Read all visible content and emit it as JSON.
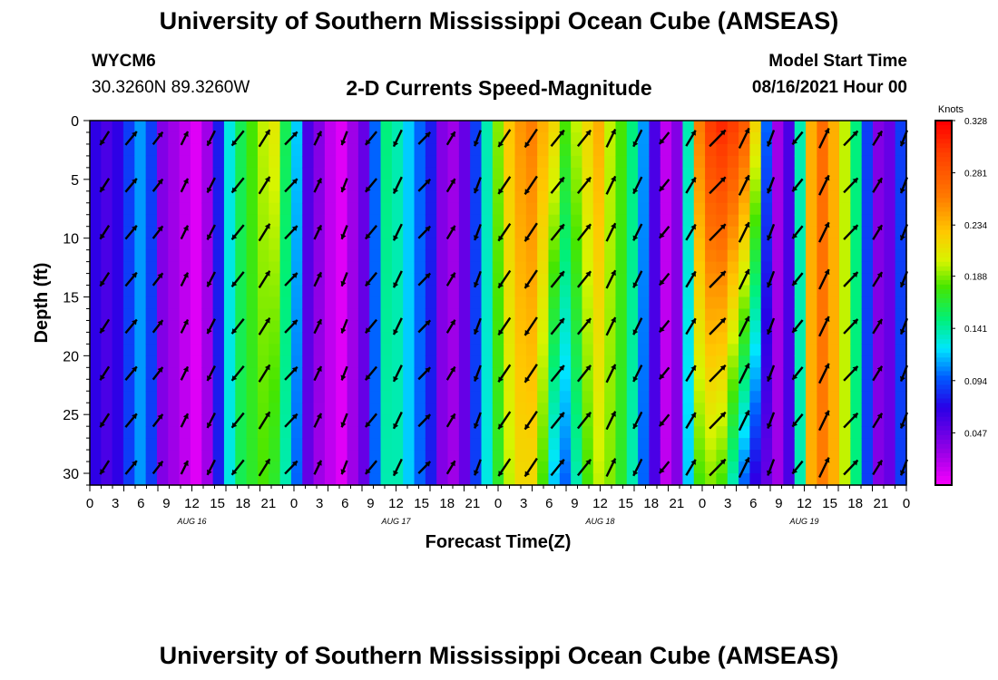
{
  "header": {
    "title": "University of Southern Mississippi Ocean Cube (AMSEAS)",
    "station": "WYCM6",
    "coords": "30.3260N  89.3260W",
    "subtitle": "2-D Currents Speed-Magnitude",
    "model_label": "Model Start Time",
    "model_date": "08/16/2021 Hour 00"
  },
  "footer": {
    "title": "University of Southern Mississippi Ocean Cube (AMSEAS)"
  },
  "chart_data": {
    "type": "heatmap",
    "title": "2-D Currents Speed-Magnitude",
    "xlabel": "Forecast Time(Z)",
    "ylabel": "Depth (ft)",
    "xlim": [
      0,
      72
    ],
    "ylim": [
      31,
      0
    ],
    "x_tick_labels": [
      "0",
      "3",
      "6",
      "9",
      "12",
      "15",
      "18",
      "21",
      "0",
      "3",
      "6",
      "9",
      "12",
      "15",
      "18",
      "21",
      "0",
      "3",
      "6",
      "9",
      "12",
      "15",
      "18",
      "21",
      "0",
      "3",
      "6",
      "9",
      "12",
      "15",
      "18",
      "21",
      "0"
    ],
    "y_ticks": [
      0,
      5,
      10,
      15,
      20,
      25,
      30
    ],
    "day_labels": [
      "AUG 16",
      "AUG 17",
      "AUG 18",
      "AUG 19"
    ],
    "colorbar": {
      "unit": "Knots",
      "min": 0,
      "max": 0.328,
      "tick_labels": [
        "0.328",
        "0.281",
        "0.234",
        "0.188",
        "0.141",
        "0.094",
        "0.047"
      ]
    },
    "speed_profile_surface": [
      0.07,
      0.06,
      0.07,
      0.09,
      0.11,
      0.09,
      0.04,
      0.03,
      0.02,
      0.01,
      0.03,
      0.08,
      0.13,
      0.16,
      0.18,
      0.2,
      0.21,
      0.16,
      0.12,
      0.06,
      0.04,
      0.02,
      0.01,
      0.03,
      0.05,
      0.1,
      0.15,
      0.14,
      0.12,
      0.1,
      0.08,
      0.04,
      0.03,
      0.05,
      0.09,
      0.14,
      0.19,
      0.23,
      0.25,
      0.26,
      0.24,
      0.22,
      0.18,
      0.2,
      0.22,
      0.24,
      0.2,
      0.18,
      0.15,
      0.11,
      0.06,
      0.02,
      0.04,
      0.14,
      0.26,
      0.3,
      0.31,
      0.3,
      0.28,
      0.22,
      0.1,
      0.03,
      0.06,
      0.14,
      0.24,
      0.27,
      0.24,
      0.2,
      0.15,
      0.09,
      0.04,
      0.05,
      0.09
    ],
    "speed_profile_bottom": [
      0.07,
      0.06,
      0.07,
      0.09,
      0.11,
      0.09,
      0.04,
      0.03,
      0.02,
      0.01,
      0.03,
      0.08,
      0.13,
      0.16,
      0.17,
      0.18,
      0.17,
      0.14,
      0.1,
      0.05,
      0.03,
      0.02,
      0.01,
      0.03,
      0.05,
      0.1,
      0.14,
      0.14,
      0.12,
      0.1,
      0.08,
      0.04,
      0.03,
      0.05,
      0.09,
      0.13,
      0.17,
      0.2,
      0.22,
      0.22,
      0.18,
      0.12,
      0.1,
      0.14,
      0.18,
      0.2,
      0.19,
      0.17,
      0.14,
      0.1,
      0.06,
      0.02,
      0.04,
      0.12,
      0.18,
      0.19,
      0.18,
      0.14,
      0.1,
      0.07,
      0.05,
      0.03,
      0.06,
      0.14,
      0.24,
      0.26,
      0.24,
      0.2,
      0.15,
      0.09,
      0.04,
      0.05,
      0.09
    ]
  }
}
